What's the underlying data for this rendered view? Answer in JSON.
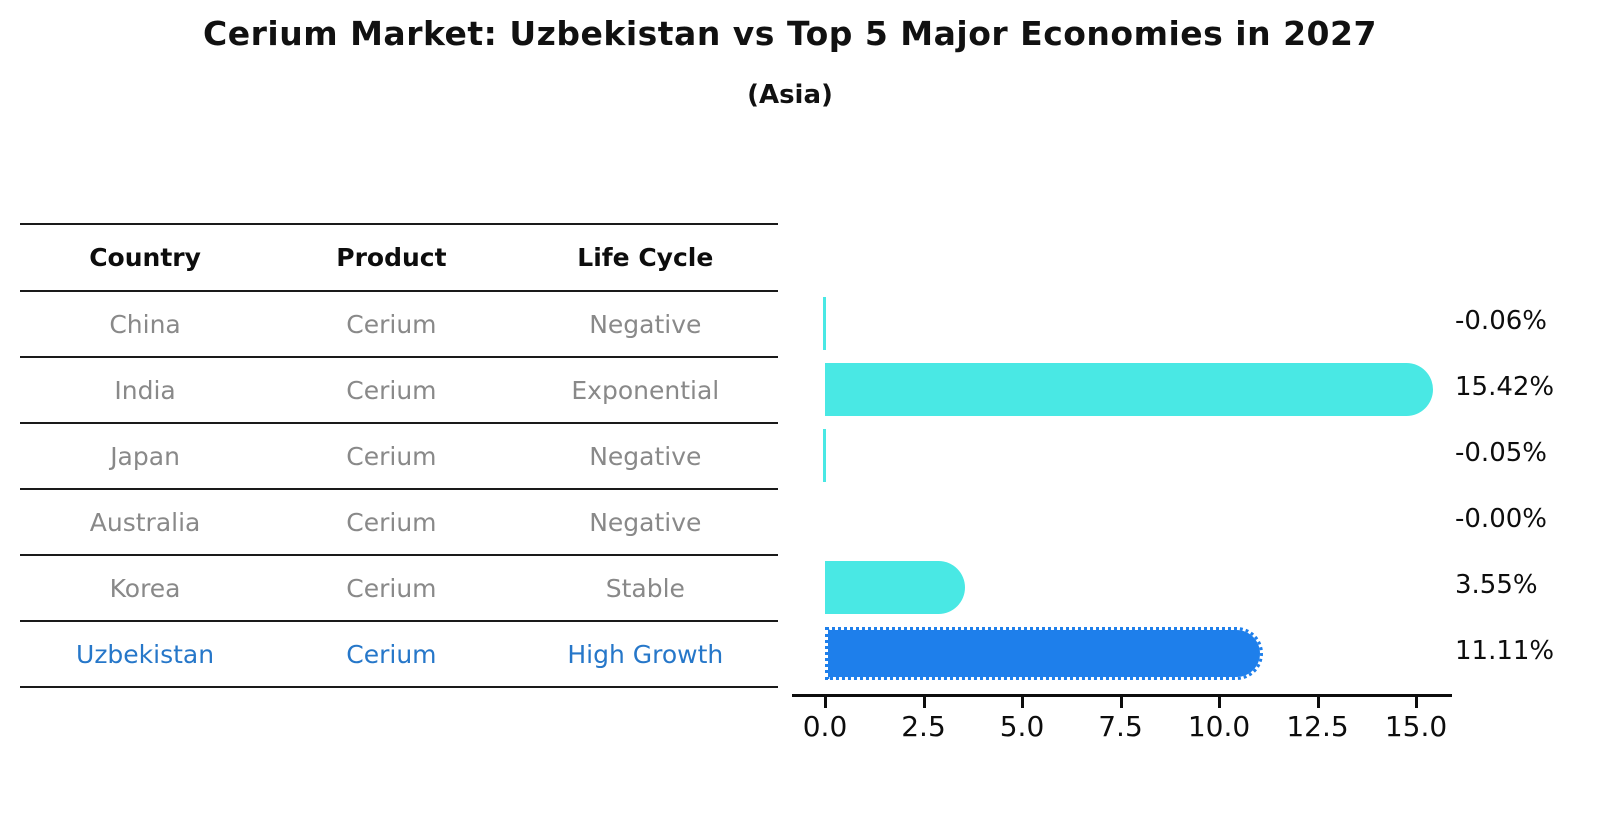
{
  "header": {
    "title": "Cerium Market: Uzbekistan vs Top 5 Major Economies in 2027",
    "subtitle": "(Asia)"
  },
  "table": {
    "columns": [
      "Country",
      "Product",
      "Life Cycle"
    ],
    "rows": [
      {
        "country": "China",
        "product": "Cerium",
        "life_cycle": "Negative",
        "highlight": false
      },
      {
        "country": "India",
        "product": "Cerium",
        "life_cycle": "Exponential",
        "highlight": false
      },
      {
        "country": "Japan",
        "product": "Cerium",
        "life_cycle": "Negative",
        "highlight": false
      },
      {
        "country": "Australia",
        "product": "Cerium",
        "life_cycle": "Negative",
        "highlight": false
      },
      {
        "country": "Korea",
        "product": "Cerium",
        "life_cycle": "Stable",
        "highlight": false
      },
      {
        "country": "Uzbekistan",
        "product": "Cerium",
        "life_cycle": "High Growth",
        "highlight": true
      }
    ]
  },
  "chart_data": {
    "type": "bar",
    "orientation": "horizontal",
    "title": "Cerium Market: Uzbekistan vs Top 5 Major Economies in 2027",
    "subtitle": "(Asia)",
    "categories": [
      "China",
      "India",
      "Japan",
      "Australia",
      "Korea",
      "Uzbekistan"
    ],
    "values": [
      -0.06,
      15.42,
      -0.05,
      -0.0,
      3.55,
      11.11
    ],
    "value_labels": [
      "-0.06%",
      "15.42%",
      "-0.05%",
      "-0.00%",
      "3.55%",
      "11.11%"
    ],
    "x_ticks": [
      0,
      2.5,
      5,
      7.5,
      10,
      12.5,
      15
    ],
    "x_tick_labels": [
      "0.0",
      "2.5",
      "5.0",
      "7.5",
      "10.0",
      "12.5",
      "15.0"
    ],
    "xlim": [
      -0.85,
      16.0
    ],
    "grid": false,
    "legend": "none",
    "highlight_index": 5,
    "bar_color": "#49E8E4",
    "highlight_color": "#1E7FEB",
    "highlight_edge_color": "#1566CF"
  },
  "colors": {
    "bar_cyan": "#49E8E4",
    "bar_blue": "#1E7FEB",
    "text_gray": "#898989",
    "text_blue": "#2677C9",
    "text_black": "#111111"
  }
}
